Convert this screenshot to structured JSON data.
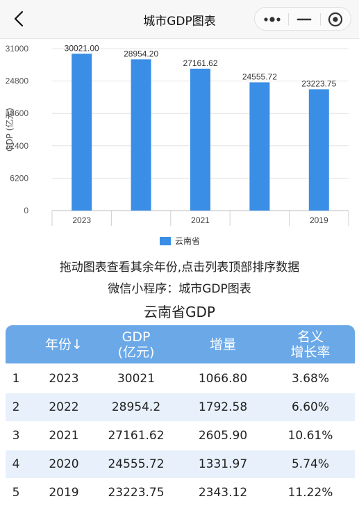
{
  "nav": {
    "title": "城市GDP图表",
    "back_icon": "chevron-left-icon",
    "more_icon": "more-dots-icon",
    "minimize_icon": "minimize-icon",
    "close_icon": "record-circle-icon"
  },
  "chart_data": {
    "type": "bar",
    "categories": [
      "2023",
      "2022",
      "2021",
      "2020",
      "2019"
    ],
    "x_tick_labels": [
      "2023",
      "",
      "2021",
      "",
      "2019"
    ],
    "series": [
      {
        "name": "云南省",
        "values": [
          30021.0,
          28954.2,
          27161.62,
          24555.72,
          23223.75
        ],
        "color": "#3a8ee6"
      }
    ],
    "data_labels": [
      "30021.00",
      "28954.20",
      "27161.62",
      "24555.72",
      "23223.75"
    ],
    "ylabel": "GDP (亿元)",
    "xlabel": "",
    "yticks": [
      0,
      6200,
      12400,
      18600,
      24800,
      31000
    ],
    "ylim": [
      0,
      31000
    ],
    "grid": true,
    "legend_position": "bottom"
  },
  "hints": {
    "line1": "拖动图表查看其余年份,点击列表顶部排序数据",
    "line2": "微信小程序：城市GDP图表"
  },
  "table": {
    "title": "云南省GDP",
    "headers": {
      "year": "年份↓",
      "gdp_line1": "GDP",
      "gdp_line2": "(亿元)",
      "increase": "增量",
      "growth_line1": "名义",
      "growth_line2": "增长率"
    },
    "rows": [
      {
        "rank": "1",
        "year": "2023",
        "gdp": "30021",
        "increase": "1066.80",
        "growth": "3.68%"
      },
      {
        "rank": "2",
        "year": "2022",
        "gdp": "28954.2",
        "increase": "1792.58",
        "growth": "6.60%"
      },
      {
        "rank": "3",
        "year": "2021",
        "gdp": "27161.62",
        "increase": "2605.90",
        "growth": "10.61%"
      },
      {
        "rank": "4",
        "year": "2020",
        "gdp": "24555.72",
        "increase": "1331.97",
        "growth": "5.74%"
      },
      {
        "rank": "5",
        "year": "2019",
        "gdp": "23223.75",
        "increase": "2343.12",
        "growth": "11.22%"
      }
    ]
  },
  "colors": {
    "header_bg": "#6aa8e8",
    "row_alt": "#e8f1fb",
    "bar": "#3a8ee6"
  }
}
